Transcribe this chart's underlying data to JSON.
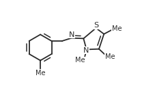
{
  "background_color": "#ffffff",
  "line_color": "#2a2a2a",
  "line_width": 1.3,
  "font_size": 7.5,
  "figsize": [
    2.46,
    1.39
  ],
  "dpi": 100,
  "xlim": [
    -0.5,
    6.2
  ],
  "ylim": [
    -1.2,
    2.2
  ]
}
